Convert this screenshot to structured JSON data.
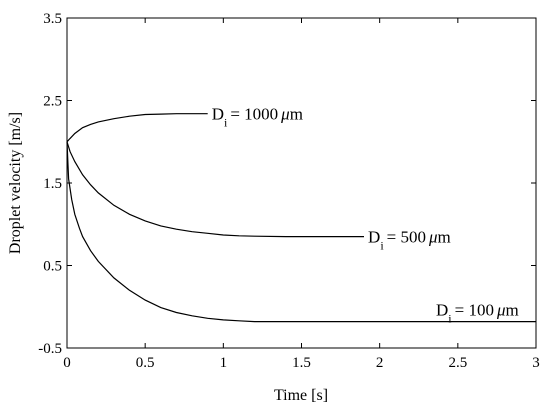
{
  "chart_data": {
    "type": "line",
    "xlabel": "Time [s]",
    "ylabel": "Droplet velocity [m/s]",
    "xlim": [
      0,
      3
    ],
    "ylim": [
      -0.5,
      3.5
    ],
    "xticks": [
      "0",
      "0.5",
      "1",
      "1.5",
      "2",
      "2.5",
      "3"
    ],
    "yticks": [
      "-0.5",
      "0.5",
      "1.5",
      "2.5",
      "3.5"
    ],
    "grid": false,
    "legend": "none",
    "series": [
      {
        "annotation": {
          "prefix": "D",
          "sub": "i",
          "value": "= 1000",
          "mu": "μ",
          "unit": "m"
        },
        "x": [
          0,
          0.02,
          0.05,
          0.1,
          0.15,
          0.2,
          0.3,
          0.4,
          0.5,
          0.6,
          0.7,
          0.8,
          0.9
        ],
        "y": [
          2.0,
          2.04,
          2.1,
          2.17,
          2.21,
          2.24,
          2.28,
          2.31,
          2.33,
          2.335,
          2.34,
          2.34,
          2.34
        ]
      },
      {
        "annotation": {
          "prefix": "D",
          "sub": "i",
          "value": "= 500",
          "mu": "μ",
          "unit": "m"
        },
        "x": [
          0,
          0.02,
          0.05,
          0.1,
          0.15,
          0.2,
          0.3,
          0.4,
          0.5,
          0.6,
          0.7,
          0.8,
          0.9,
          1.0,
          1.1,
          1.2,
          1.4,
          1.6,
          1.8,
          1.9
        ],
        "y": [
          2.0,
          1.88,
          1.76,
          1.6,
          1.48,
          1.38,
          1.23,
          1.12,
          1.04,
          0.98,
          0.94,
          0.91,
          0.89,
          0.87,
          0.86,
          0.855,
          0.85,
          0.85,
          0.85,
          0.85
        ]
      },
      {
        "annotation": {
          "prefix": "D",
          "sub": "i",
          "value": "= 100",
          "mu": "μ",
          "unit": "m"
        },
        "x": [
          0,
          0.01,
          0.03,
          0.05,
          0.08,
          0.1,
          0.15,
          0.2,
          0.3,
          0.4,
          0.5,
          0.6,
          0.7,
          0.8,
          0.9,
          1.0,
          1.1,
          1.2,
          1.5,
          2.0,
          2.5,
          3.0
        ],
        "y": [
          2.0,
          1.55,
          1.3,
          1.12,
          0.95,
          0.85,
          0.68,
          0.55,
          0.35,
          0.2,
          0.08,
          -0.01,
          -0.07,
          -0.11,
          -0.14,
          -0.16,
          -0.17,
          -0.18,
          -0.18,
          -0.18,
          -0.18,
          -0.18
        ]
      }
    ]
  }
}
